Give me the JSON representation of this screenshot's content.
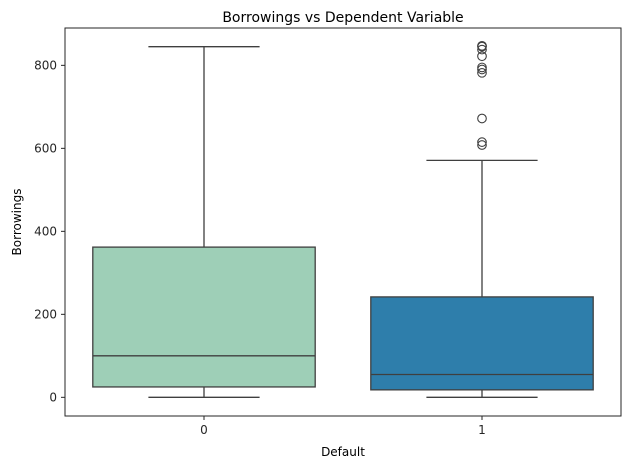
{
  "chart_data": {
    "type": "box",
    "title": "Borrowings vs Dependent Variable",
    "xlabel": "Default",
    "ylabel": "Borrowings",
    "ylim": [
      -45,
      890
    ],
    "yticks": [
      0,
      200,
      400,
      600,
      800
    ],
    "categories": [
      "0",
      "1"
    ],
    "boxes": [
      {
        "category": "0",
        "color": "#9ecfb7",
        "whisker_low": 0,
        "q1": 25,
        "median": 100,
        "q3": 362,
        "whisker_high": 845,
        "outliers": []
      },
      {
        "category": "1",
        "color": "#2e7eab",
        "whisker_low": 0,
        "q1": 18,
        "median": 55,
        "q3": 242,
        "whisker_high": 571,
        "outliers": [
          608,
          615,
          672,
          782,
          790,
          795,
          822,
          838,
          845,
          847
        ]
      }
    ],
    "grid": false
  }
}
